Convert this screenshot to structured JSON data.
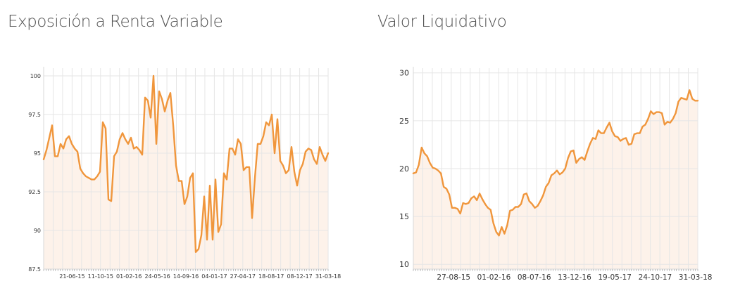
{
  "panels": [
    {
      "title": "Exposición a Renta Variable"
    },
    {
      "title": "Valor Liquidativo"
    }
  ],
  "colors": {
    "line": "#f0963c",
    "area": "#fdf2ea",
    "grid": "#e6e6e6",
    "axis": "#d8d8d8"
  },
  "chart_data": [
    {
      "type": "area",
      "title": "Exposición a Renta Variable",
      "ylim": [
        87.5,
        100.5
      ],
      "xlim": [
        0,
        120
      ],
      "grid": true,
      "yticks": [
        "100",
        "97.5",
        "95",
        "92.5",
        "90",
        "87.5"
      ],
      "ytick_values": [
        100,
        97.5,
        95,
        92.5,
        90,
        87.5
      ],
      "xticks": [
        "21-06-15",
        "11-10-15",
        "01-02-16",
        "24-05-16",
        "14-09-16",
        "04-01-17",
        "27-04-17",
        "18-08-17",
        "08-12-17",
        "31-03-18"
      ],
      "xtick_positions": [
        12,
        24,
        36,
        48,
        60,
        72,
        84,
        96,
        108,
        120
      ],
      "series": [
        {
          "values": [
            94.6,
            95.2,
            96.0,
            96.8,
            94.8,
            94.8,
            95.6,
            95.3,
            95.9,
            96.1,
            95.6,
            95.3,
            95.1,
            94.0,
            93.7,
            93.5,
            93.4,
            93.3,
            93.3,
            93.5,
            93.8,
            97.0,
            96.6,
            92.0,
            91.9,
            94.8,
            95.1,
            95.9,
            96.3,
            95.9,
            95.6,
            96.0,
            95.3,
            95.4,
            95.2,
            94.9,
            98.6,
            98.4,
            97.3,
            100.0,
            95.6,
            99.0,
            98.5,
            97.7,
            98.4,
            98.9,
            96.8,
            94.2,
            93.2,
            93.2,
            91.7,
            92.2,
            93.4,
            93.7,
            88.6,
            88.8,
            89.7,
            92.2,
            89.4,
            92.9,
            89.4,
            93.3,
            89.9,
            90.4,
            93.7,
            93.3,
            95.3,
            95.3,
            94.9,
            95.9,
            95.6,
            93.9,
            94.1,
            94.1,
            90.8,
            93.4,
            95.6,
            95.6,
            96.1,
            97.0,
            96.8,
            97.5,
            95.0,
            97.2,
            94.5,
            94.2,
            93.7,
            93.9,
            95.4,
            93.8,
            92.9,
            93.9,
            94.3,
            95.1,
            95.3,
            95.2,
            94.6,
            94.3,
            95.4,
            94.9,
            94.5,
            95.0
          ]
        }
      ]
    },
    {
      "type": "area",
      "title": "Valor Liquidativo",
      "ylim": [
        9.5,
        30.5
      ],
      "xlim": [
        0,
        120
      ],
      "grid": true,
      "yticks": [
        "30",
        "25",
        "20",
        "15",
        "10"
      ],
      "ytick_values": [
        30,
        25,
        20,
        15,
        10
      ],
      "xticks": [
        "27-08-15",
        "01-02-16",
        "08-07-16",
        "13-12-16",
        "19-05-17",
        "24-10-17",
        "31-03-18"
      ],
      "xtick_positions": [
        17,
        34,
        51,
        68,
        85,
        102,
        119
      ],
      "series": [
        {
          "values": [
            19.5,
            19.6,
            20.4,
            22.2,
            21.6,
            21.3,
            20.6,
            20.1,
            20.0,
            19.8,
            19.5,
            18.1,
            17.9,
            17.3,
            15.9,
            15.9,
            15.8,
            15.3,
            16.4,
            16.3,
            16.4,
            16.9,
            17.1,
            16.7,
            17.4,
            16.8,
            16.3,
            15.9,
            15.7,
            14.3,
            13.4,
            13.0,
            13.9,
            13.2,
            14.1,
            15.6,
            15.7,
            16.0,
            16.0,
            16.3,
            17.3,
            17.4,
            16.6,
            16.3,
            15.9,
            16.1,
            16.6,
            17.2,
            18.1,
            18.5,
            19.3,
            19.5,
            19.8,
            19.4,
            19.6,
            20.0,
            21.1,
            21.8,
            21.9,
            20.6,
            21.0,
            21.2,
            20.9,
            21.8,
            22.6,
            23.2,
            23.1,
            24.0,
            23.7,
            23.7,
            24.3,
            24.8,
            23.9,
            23.4,
            23.3,
            22.9,
            23.1,
            23.2,
            22.5,
            22.6,
            23.6,
            23.7,
            23.7,
            24.4,
            24.6,
            25.2,
            26.0,
            25.7,
            25.9,
            25.9,
            25.8,
            24.6,
            24.9,
            24.8,
            25.2,
            25.8,
            27.0,
            27.4,
            27.3,
            27.2,
            28.2,
            27.3,
            27.1,
            27.1
          ]
        }
      ]
    }
  ]
}
